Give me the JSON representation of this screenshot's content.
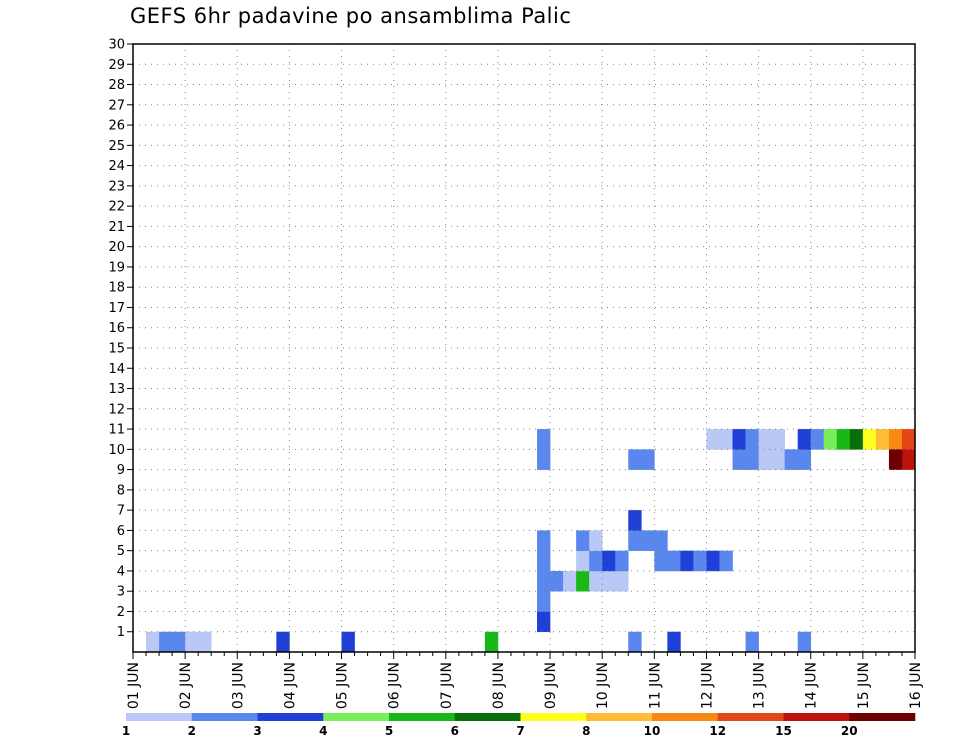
{
  "chart_data": {
    "type": "heatmap",
    "title": "GEFS 6hr padavine po ansamblima Palic",
    "x_start_label": "01 JUN",
    "x_labels": [
      "01 JUN",
      "02 JUN",
      "03 JUN",
      "04 JUN",
      "05 JUN",
      "06 JUN",
      "07 JUN",
      "08 JUN",
      "09 JUN",
      "10 JUN",
      "11 JUN",
      "12 JUN",
      "13 JUN",
      "14 JUN",
      "15 JUN",
      "16 JUN"
    ],
    "xlim": [
      0,
      60
    ],
    "y_labels": [
      "1",
      "2",
      "3",
      "4",
      "5",
      "6",
      "7",
      "8",
      "9",
      "10",
      "11",
      "12",
      "13",
      "14",
      "15",
      "16",
      "17",
      "18",
      "19",
      "20",
      "21",
      "22",
      "23",
      "24",
      "25",
      "26",
      "27",
      "28",
      "29",
      "30"
    ],
    "ylim": [
      0,
      30
    ],
    "grid": true,
    "x_unit": "6-hour step",
    "y_unit": "ensemble member",
    "colorbar": {
      "labels": [
        "1",
        "2",
        "3",
        "4",
        "5",
        "6",
        "7",
        "8",
        "10",
        "12",
        "15",
        "20"
      ],
      "colors": [
        "#b9c8f5",
        "#5a87ee",
        "#1f3fd6",
        "#78ee5a",
        "#18b818",
        "#0a6e0a",
        "#ffff1e",
        "#ffbd36",
        "#f88a14",
        "#e64616",
        "#c0120c",
        "#6e0000"
      ]
    },
    "cells": [
      [
        1,
        0,
        0
      ],
      [
        2,
        0,
        1
      ],
      [
        3,
        0,
        1
      ],
      [
        4,
        0,
        0
      ],
      [
        5,
        0,
        0
      ],
      [
        11,
        0,
        2
      ],
      [
        16,
        0,
        2
      ],
      [
        27,
        0,
        4
      ],
      [
        38,
        0,
        1
      ],
      [
        41,
        0,
        2
      ],
      [
        47,
        0,
        1
      ],
      [
        51,
        0,
        1
      ],
      [
        31,
        1,
        2
      ],
      [
        31,
        2,
        1
      ],
      [
        31,
        3,
        1
      ],
      [
        31,
        4,
        1
      ],
      [
        31,
        5,
        1
      ],
      [
        31,
        9,
        1
      ],
      [
        31,
        10,
        1
      ],
      [
        32,
        3,
        1
      ],
      [
        33,
        3,
        0
      ],
      [
        34,
        3,
        4
      ],
      [
        35,
        3,
        0
      ],
      [
        36,
        3,
        0
      ],
      [
        37,
        3,
        0
      ],
      [
        34,
        4,
        0
      ],
      [
        34,
        5,
        1
      ],
      [
        35,
        4,
        1
      ],
      [
        35,
        5,
        0
      ],
      [
        36,
        4,
        2
      ],
      [
        37,
        4,
        1
      ],
      [
        38,
        5,
        1
      ],
      [
        39,
        5,
        1
      ],
      [
        38,
        6,
        2
      ],
      [
        38,
        9,
        1
      ],
      [
        39,
        9,
        1
      ],
      [
        40,
        4,
        1
      ],
      [
        40,
        5,
        1
      ],
      [
        41,
        4,
        1
      ],
      [
        42,
        4,
        2
      ],
      [
        43,
        4,
        1
      ],
      [
        44,
        4,
        2
      ],
      [
        45,
        4,
        1
      ],
      [
        46,
        9,
        1
      ],
      [
        47,
        9,
        1
      ],
      [
        48,
        9,
        0
      ],
      [
        49,
        9,
        0
      ],
      [
        50,
        9,
        1
      ],
      [
        51,
        9,
        1
      ],
      [
        44,
        10,
        0
      ],
      [
        45,
        10,
        0
      ],
      [
        46,
        10,
        2
      ],
      [
        47,
        10,
        1
      ],
      [
        48,
        10,
        0
      ],
      [
        49,
        10,
        0
      ],
      [
        51,
        10,
        2
      ],
      [
        52,
        10,
        1
      ],
      [
        53,
        10,
        3
      ],
      [
        54,
        10,
        4
      ],
      [
        55,
        10,
        5
      ],
      [
        56,
        10,
        6
      ],
      [
        57,
        10,
        7
      ],
      [
        58,
        10,
        8
      ],
      [
        59,
        10,
        9
      ],
      [
        59,
        9,
        10
      ],
      [
        58,
        9,
        11
      ]
    ]
  }
}
